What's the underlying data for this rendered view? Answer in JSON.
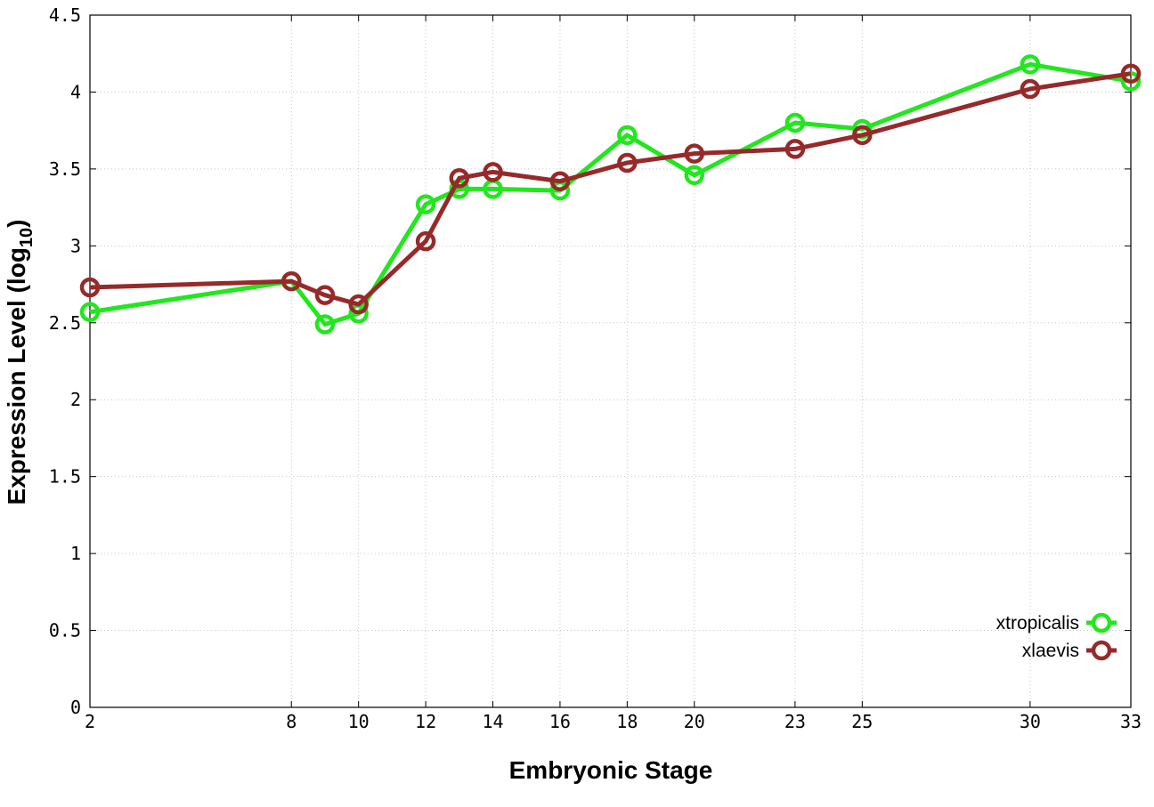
{
  "chart_data": {
    "type": "line",
    "title": "",
    "xlabel": "Embryonic Stage",
    "ylabel_main": "Expression Level (log",
    "ylabel_sub": "10",
    "ylabel_close": ")",
    "xlim": [
      2,
      33
    ],
    "ylim": [
      0,
      4.5
    ],
    "xticks": [
      2,
      8,
      10,
      12,
      14,
      16,
      18,
      20,
      23,
      25,
      30,
      33
    ],
    "yticks": [
      0,
      0.5,
      1,
      1.5,
      2,
      2.5,
      3,
      3.5,
      4,
      4.5
    ],
    "ytick_labels": [
      "0",
      "0.5",
      "1",
      "1.5",
      "2",
      "2.5",
      "3",
      "3.5",
      "4",
      "4.5"
    ],
    "grid": true,
    "legend_position": "bottom-right",
    "x": [
      2,
      8,
      9,
      10,
      12,
      13,
      14,
      16,
      18,
      20,
      23,
      25,
      30,
      33
    ],
    "series": [
      {
        "name": "xtropicalis",
        "color": "#22e61e",
        "values": [
          2.57,
          2.77,
          2.49,
          2.56,
          3.27,
          3.37,
          3.37,
          3.36,
          3.72,
          3.46,
          3.8,
          3.76,
          4.18,
          4.07
        ]
      },
      {
        "name": "xlaevis",
        "color": "#962a2a",
        "values": [
          2.73,
          2.77,
          2.68,
          2.62,
          3.03,
          3.44,
          3.48,
          3.42,
          3.54,
          3.6,
          3.63,
          3.72,
          4.02,
          4.12
        ]
      }
    ]
  }
}
